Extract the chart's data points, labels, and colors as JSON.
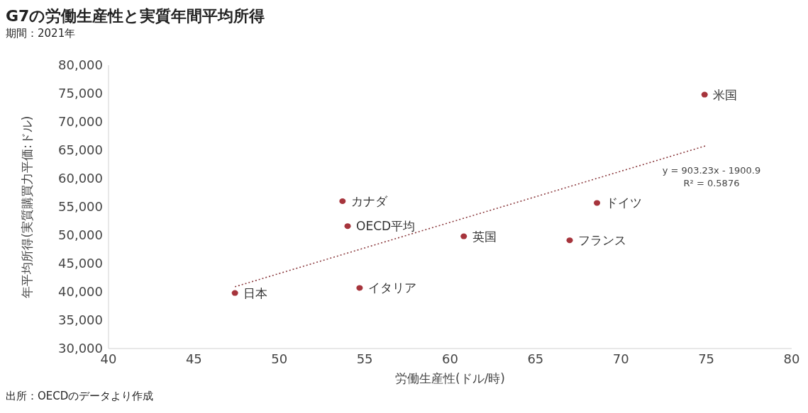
{
  "chart_data": {
    "type": "scatter",
    "title": "G7の労働生産性と実質年間平均所得",
    "subtitle": "期間：2021年",
    "xlabel": "労働生産性(ドル/時)",
    "ylabel": "年平均所得(実質購買力平価:ドル)",
    "xlim": [
      40,
      80
    ],
    "xticks": [
      40,
      45,
      50,
      55,
      60,
      65,
      70,
      75,
      80
    ],
    "ylim": [
      30000,
      80000
    ],
    "yticks": [
      {
        "value": 30000,
        "label": "30,000"
      },
      {
        "value": 35000,
        "label": "35,000"
      },
      {
        "value": 40000,
        "label": "40,000"
      },
      {
        "value": 45000,
        "label": "45,000"
      },
      {
        "value": 50000,
        "label": "50,000"
      },
      {
        "value": 55000,
        "label": "55,000"
      },
      {
        "value": 60000,
        "label": "60,000"
      },
      {
        "value": 65000,
        "label": "65,000"
      },
      {
        "value": 70000,
        "label": "70,000"
      },
      {
        "value": 75000,
        "label": "75,000"
      },
      {
        "value": 80000,
        "label": "80,000"
      }
    ],
    "marker": "circle",
    "series": [
      {
        "name": "米国",
        "color": "#a6343c",
        "x": [
          74.9
        ],
        "values": [
          74800
        ]
      },
      {
        "name": "カナダ",
        "color": "#a6343c",
        "x": [
          53.7
        ],
        "values": [
          56000
        ]
      },
      {
        "name": "ドイツ",
        "color": "#a6343c",
        "x": [
          68.6
        ],
        "values": [
          55700
        ]
      },
      {
        "name": "OECD平均",
        "color": "#a6343c",
        "x": [
          54.0
        ],
        "values": [
          51600
        ]
      },
      {
        "name": "英国",
        "color": "#a6343c",
        "x": [
          60.8
        ],
        "values": [
          49800
        ]
      },
      {
        "name": "フランス",
        "color": "#a6343c",
        "x": [
          67.0
        ],
        "values": [
          49100
        ]
      },
      {
        "name": "イタリア",
        "color": "#a6343c",
        "x": [
          54.7
        ],
        "values": [
          40700
        ]
      },
      {
        "name": "日本",
        "color": "#a6343c",
        "x": [
          47.4
        ],
        "values": [
          39800
        ]
      },
      {
        "type": "line",
        "color": "#8b3a3e",
        "line_style": "dotted",
        "marker": "none",
        "x": [
          47.4,
          75
        ],
        "values": [
          40900,
          65800
        ]
      }
    ],
    "annotations": [
      "y = 903.23x - 1900.9",
      "R² = 0.5876",
      "出所：OECDのデータより作成"
    ]
  }
}
